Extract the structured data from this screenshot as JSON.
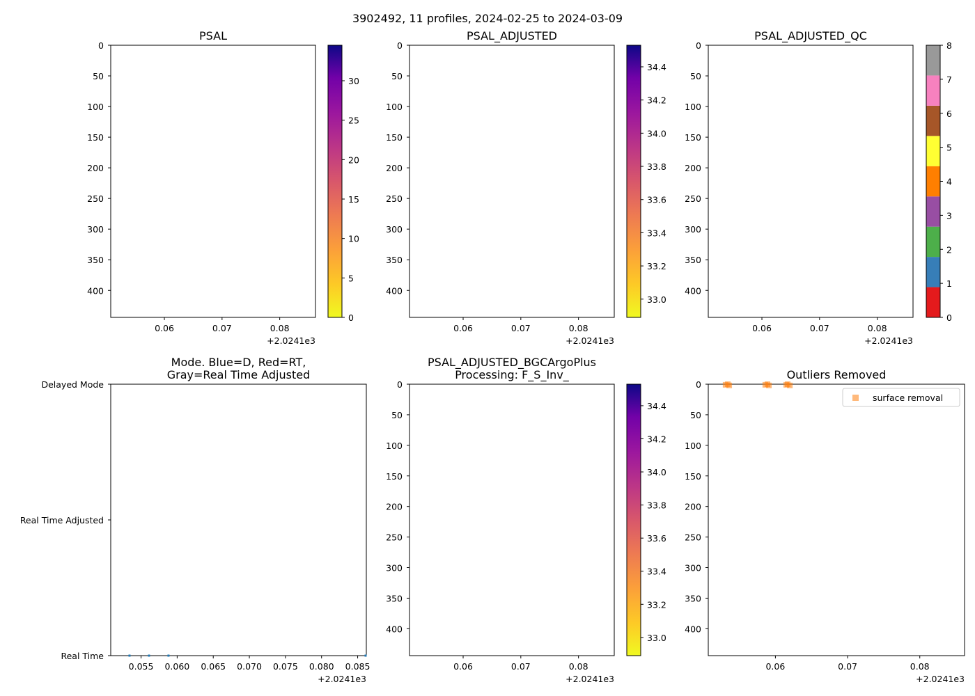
{
  "chart_data": [
    {
      "id": "psal",
      "type": "heatmap",
      "title": "PSAL",
      "x_ticks": [
        "0.06",
        "0.07",
        "0.08"
      ],
      "x_tick_values": [
        0.06,
        0.07,
        0.08
      ],
      "x_offset": "+2.0241e3",
      "xlim": [
        0.0507,
        0.0862
      ],
      "y_ticks": [
        "0",
        "50",
        "100",
        "150",
        "200",
        "250",
        "300",
        "350",
        "400"
      ],
      "y_tick_values": [
        0,
        50,
        100,
        150,
        200,
        250,
        300,
        350,
        400
      ],
      "ylim": [
        444,
        0
      ],
      "colorbar": {
        "colormap": "plasma_r",
        "min": 0,
        "max": 34.5,
        "ticks": [
          "0",
          "5",
          "10",
          "15",
          "20",
          "25",
          "30"
        ],
        "tick_values": [
          0,
          5,
          10,
          15,
          20,
          25,
          30
        ]
      }
    },
    {
      "id": "psal-adjusted",
      "type": "heatmap",
      "title": "PSAL_ADJUSTED",
      "x_ticks": [
        "0.06",
        "0.07",
        "0.08"
      ],
      "x_tick_values": [
        0.06,
        0.07,
        0.08
      ],
      "x_offset": "+2.0241e3",
      "xlim": [
        0.0507,
        0.0862
      ],
      "y_ticks": [
        "0",
        "50",
        "100",
        "150",
        "200",
        "250",
        "300",
        "350",
        "400"
      ],
      "y_tick_values": [
        0,
        50,
        100,
        150,
        200,
        250,
        300,
        350,
        400
      ],
      "ylim": [
        444,
        0
      ],
      "colorbar": {
        "colormap": "plasma_r",
        "min": 32.89,
        "max": 34.53,
        "ticks": [
          "33.0",
          "33.2",
          "33.4",
          "33.6",
          "33.8",
          "34.0",
          "34.2",
          "34.4"
        ],
        "tick_values": [
          33.0,
          33.2,
          33.4,
          33.6,
          33.8,
          34.0,
          34.2,
          34.4
        ]
      }
    },
    {
      "id": "psal-adjusted-qc",
      "type": "heatmap",
      "title": "PSAL_ADJUSTED_QC",
      "x_ticks": [
        "0.06",
        "0.07",
        "0.08"
      ],
      "x_tick_values": [
        0.06,
        0.07,
        0.08
      ],
      "x_offset": "+2.0241e3",
      "xlim": [
        0.0507,
        0.0862
      ],
      "y_ticks": [
        "0",
        "50",
        "100",
        "150",
        "200",
        "250",
        "300",
        "350",
        "400"
      ],
      "y_tick_values": [
        0,
        50,
        100,
        150,
        200,
        250,
        300,
        350,
        400
      ],
      "ylim": [
        444,
        0
      ],
      "colorbar": {
        "colormap": "categorical",
        "min": 0,
        "max": 8,
        "ticks": [
          "0",
          "1",
          "2",
          "3",
          "4",
          "5",
          "6",
          "7",
          "8"
        ],
        "tick_values": [
          0,
          1,
          2,
          3,
          4,
          5,
          6,
          7,
          8
        ],
        "colors": [
          "#e41a1c",
          "#377eb8",
          "#4daf4a",
          "#984ea3",
          "#ff7f00",
          "#ffff33",
          "#a65628",
          "#f781bf",
          "#999999"
        ]
      }
    },
    {
      "id": "mode",
      "type": "scatter",
      "title": "Mode. Blue=D, Red=RT,\nGray=Real Time Adjusted",
      "x_ticks": [
        "0.055",
        "0.060",
        "0.065",
        "0.070",
        "0.075",
        "0.080",
        "0.085"
      ],
      "x_tick_values": [
        0.055,
        0.06,
        0.065,
        0.07,
        0.075,
        0.08,
        0.085
      ],
      "x_offset": "+2.0241e3",
      "xlim": [
        0.0508,
        0.0862
      ],
      "y_categories": [
        "Real Time",
        "Real Time Adjusted",
        "Delayed Mode"
      ],
      "ylim": [
        0,
        2
      ],
      "series": [
        {
          "name": "mode",
          "color": "#1f77b4",
          "x": [
            0.0534,
            0.0561,
            0.0588,
            0.0861
          ],
          "y": [
            0,
            0,
            0,
            0
          ]
        }
      ]
    },
    {
      "id": "psal-adjusted-bgc",
      "type": "heatmap",
      "title": "PSAL_ADJUSTED_BGCArgoPlus\nProcessing: F_S_Inv_",
      "x_ticks": [
        "0.06",
        "0.07",
        "0.08"
      ],
      "x_tick_values": [
        0.06,
        0.07,
        0.08
      ],
      "x_offset": "+2.0241e3",
      "xlim": [
        0.0507,
        0.0862
      ],
      "y_ticks": [
        "0",
        "50",
        "100",
        "150",
        "200",
        "250",
        "300",
        "350",
        "400"
      ],
      "y_tick_values": [
        0,
        50,
        100,
        150,
        200,
        250,
        300,
        350,
        400
      ],
      "ylim": [
        444,
        0
      ],
      "colorbar": {
        "colormap": "plasma_r",
        "min": 32.89,
        "max": 34.53,
        "ticks": [
          "33.0",
          "33.2",
          "33.4",
          "33.6",
          "33.8",
          "34.0",
          "34.2",
          "34.4"
        ],
        "tick_values": [
          33.0,
          33.2,
          33.4,
          33.6,
          33.8,
          34.0,
          34.2,
          34.4
        ]
      }
    },
    {
      "id": "outliers",
      "type": "scatter",
      "title": "Outliers Removed",
      "x_ticks": [
        "0.06",
        "0.07",
        "0.08"
      ],
      "x_tick_values": [
        0.06,
        0.07,
        0.08
      ],
      "x_offset": "+2.0241e3",
      "xlim": [
        0.0507,
        0.0862
      ],
      "y_ticks": [
        "0",
        "50",
        "100",
        "150",
        "200",
        "250",
        "300",
        "350",
        "400"
      ],
      "y_tick_values": [
        0,
        50,
        100,
        150,
        200,
        250,
        300,
        350,
        400
      ],
      "ylim": [
        444,
        0
      ],
      "legend": {
        "label": "surface removal",
        "position": "top-right",
        "color": "#ff7f0e"
      },
      "series": [
        {
          "name": "surface removal",
          "color": "#ff7f0e",
          "x": [
            0.0534,
            0.0531,
            0.0536,
            0.0589,
            0.0586,
            0.0591,
            0.0617,
            0.0615,
            0.062
          ],
          "y": [
            0,
            1,
            2,
            0,
            1,
            2,
            0,
            1,
            2
          ]
        }
      ]
    }
  ],
  "figure": {
    "title": "3902492, 11 profiles, 2024-02-25 to 2024-03-09"
  }
}
